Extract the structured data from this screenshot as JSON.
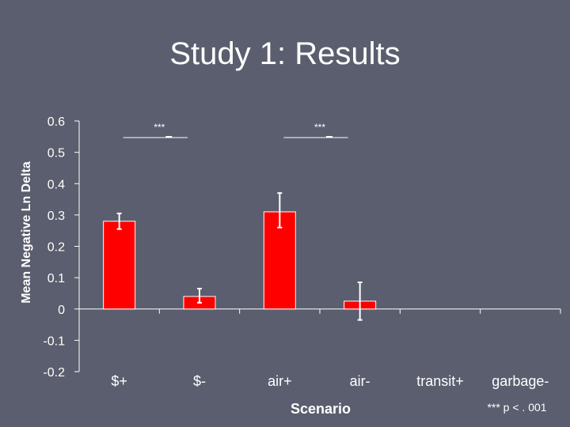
{
  "slide": {
    "title": "Study 1: Results",
    "footnote": "*** p < . 001"
  },
  "chart_data": {
    "type": "bar",
    "title": "Study 1: Results",
    "xlabel": "Scenario",
    "ylabel": "Mean Negative Ln Delta",
    "ylim": [
      -0.2,
      0.6
    ],
    "yticks": [
      "0.6",
      "0.5",
      "0.4",
      "0.3",
      "0.2",
      "0.1",
      "0",
      "-0.1",
      "-0.2"
    ],
    "ytick_values": [
      0.6,
      0.5,
      0.4,
      0.3,
      0.2,
      0.1,
      0,
      -0.1,
      -0.2
    ],
    "categories": [
      "$+",
      "$-",
      "air+",
      "air-",
      "transit+",
      "garbage-"
    ],
    "values": [
      0.28,
      0.04,
      0.31,
      0.025,
      null,
      null
    ],
    "error_low": [
      0.255,
      0.02,
      0.26,
      -0.035,
      null,
      null
    ],
    "error_high": [
      0.305,
      0.065,
      0.37,
      0.085,
      null,
      null
    ],
    "significance": [
      {
        "label": "***",
        "between": [
          0,
          1
        ]
      },
      {
        "label": "***",
        "between": [
          2,
          3
        ]
      }
    ],
    "bar_color": "#ff0000",
    "grid": false,
    "legend": "none"
  }
}
